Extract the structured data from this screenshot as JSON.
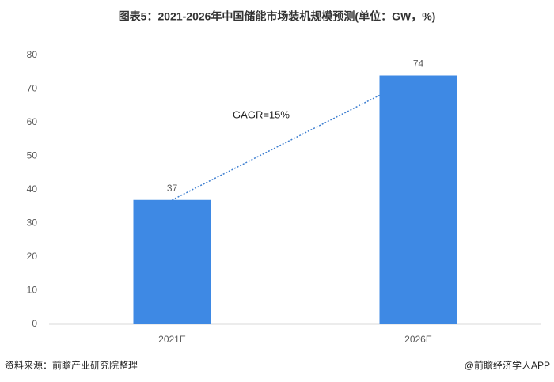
{
  "chart_data": {
    "type": "bar",
    "title": "图表5：2021-2026年中国储能市场装机规模预测(单位：GW，%)",
    "categories": [
      "2021E",
      "2026E"
    ],
    "values": [
      37,
      74
    ],
    "color": "#3e89e4",
    "ylim": [
      0,
      80
    ],
    "yticks": [
      0,
      10,
      20,
      30,
      40,
      50,
      60,
      70,
      80
    ],
    "grid": false,
    "annotation": "GAGR=15%",
    "source": "资料来源：前瞻产业研究院整理",
    "credit": "@前瞻经济学人APP"
  }
}
